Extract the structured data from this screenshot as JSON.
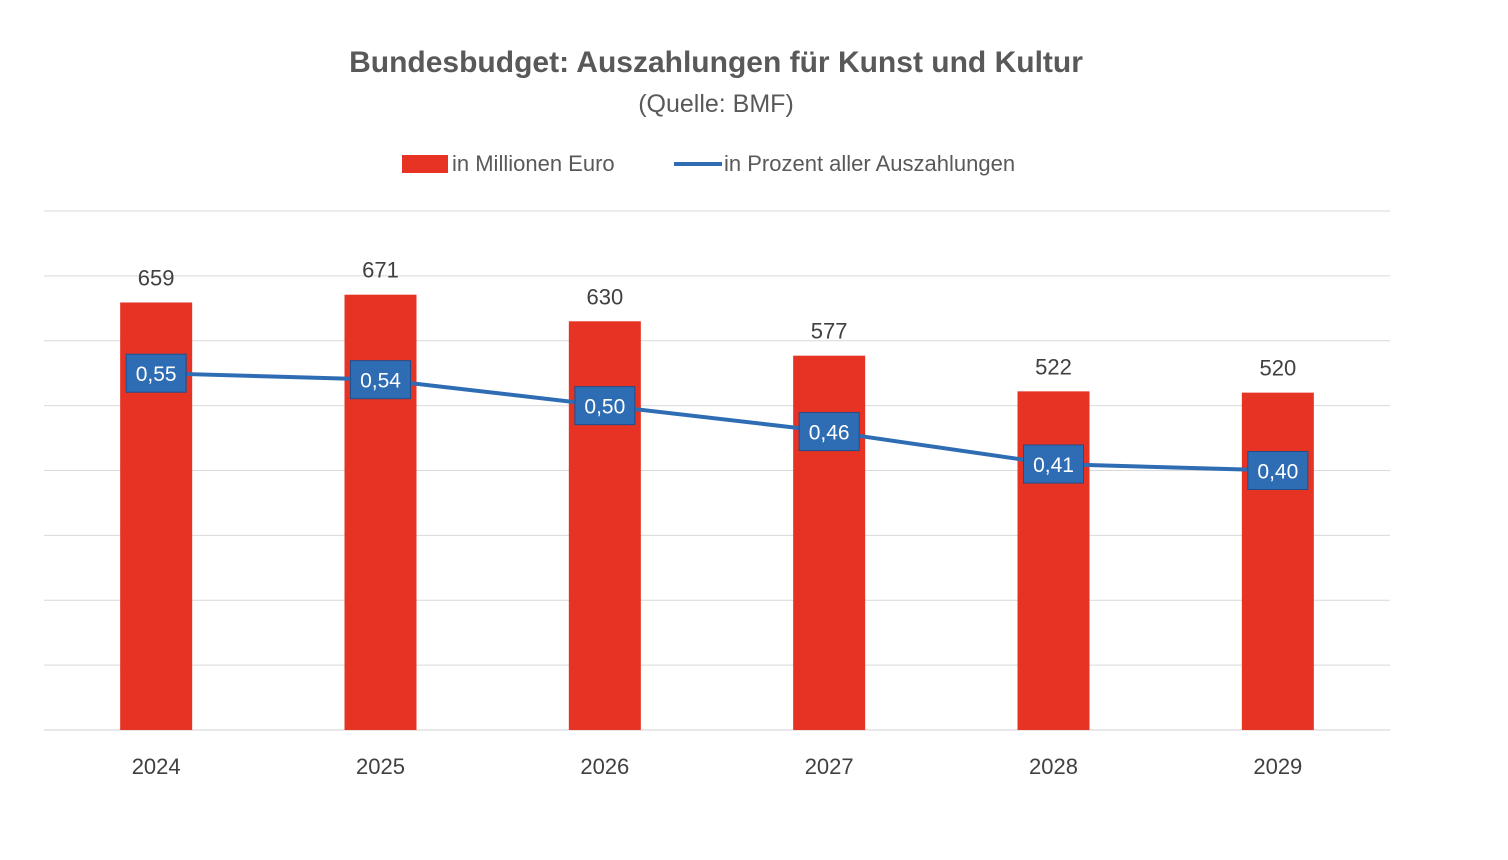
{
  "chart_data": {
    "type": "bar",
    "title": "Bundesbudget: Auszahlungen für Kunst und Kultur",
    "subtitle": "(Quelle: BMF)",
    "categories": [
      "2024",
      "2025",
      "2026",
      "2027",
      "2028",
      "2029"
    ],
    "series": [
      {
        "name": "in Millionen Euro",
        "type": "bar",
        "axis": "left",
        "color": "#E63323",
        "values": [
          659,
          671,
          630,
          577,
          522,
          520
        ],
        "labels": [
          "659",
          "671",
          "630",
          "577",
          "522",
          "520"
        ]
      },
      {
        "name": "in Prozent aller Auszahlungen",
        "type": "line",
        "axis": "right",
        "color": "#2E6DB4",
        "values": [
          0.55,
          0.54,
          0.5,
          0.46,
          0.41,
          0.4
        ],
        "labels": [
          "0,55",
          "0,54",
          "0,50",
          "0,46",
          "0,41",
          "0,40"
        ]
      }
    ],
    "y_left_range": [
      0,
      800
    ],
    "y_right_range": [
      0,
      0.8
    ],
    "gridlines": true,
    "legend_position": "top-center"
  }
}
